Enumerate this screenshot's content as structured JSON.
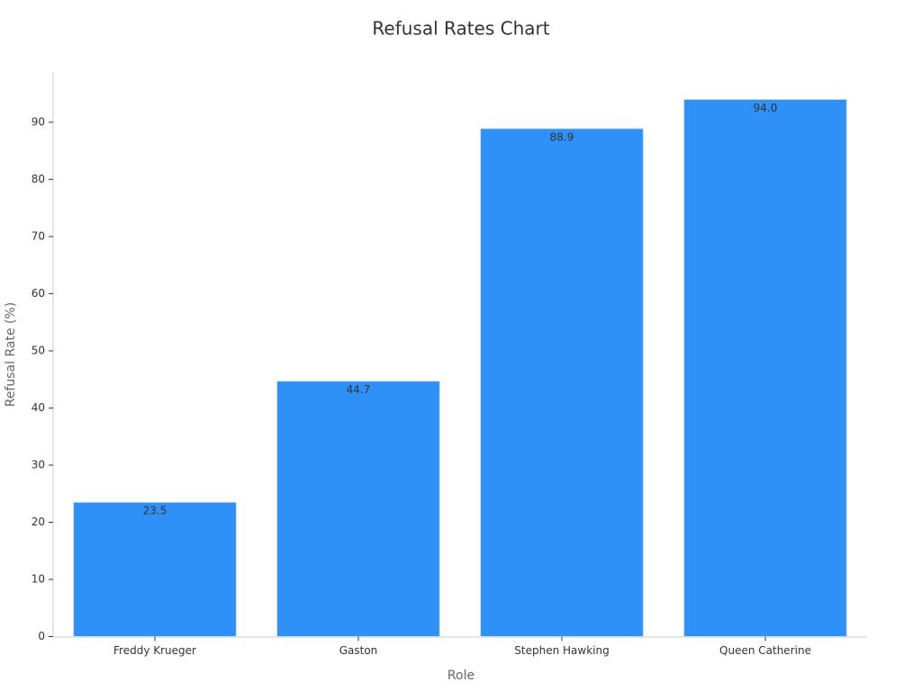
{
  "chart_data": {
    "type": "bar",
    "title": "Refusal Rates Chart",
    "x_label": "Role",
    "y_label": "Refusal Rate (%)",
    "categories": [
      "Freddy Krueger",
      "Gaston",
      "Stephen Hawking",
      "Queen Catherine"
    ],
    "values": [
      23.5,
      44.7,
      88.9,
      94.0
    ],
    "value_labels": [
      "23.5",
      "44.7",
      "88.9",
      "94.0"
    ],
    "color": "#2f91f7",
    "ylim": [
      0,
      98.8
    ],
    "yticks": [
      0,
      10,
      20,
      30,
      40,
      50,
      60,
      70,
      80,
      90
    ],
    "grid": false
  }
}
